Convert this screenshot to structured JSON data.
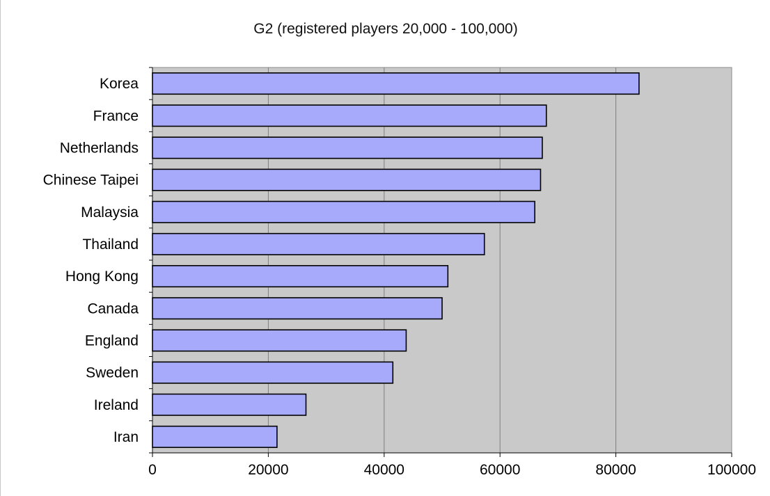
{
  "chart_data": {
    "type": "bar",
    "orientation": "horizontal",
    "title": "G2 (registered players 20,000 - 100,000)",
    "categories": [
      "Korea",
      "France",
      "Netherlands",
      "Chinese Taipei",
      "Malaysia",
      "Thailand",
      "Hong Kong",
      "Canada",
      "England",
      "Sweden",
      "Ireland",
      "Iran"
    ],
    "values": [
      84000,
      68000,
      67300,
      67000,
      66000,
      57300,
      51000,
      50000,
      43800,
      41500,
      26500,
      21500
    ],
    "xlim": [
      0,
      100000
    ],
    "xticks": [
      "0",
      "20000",
      "40000",
      "60000",
      "80000",
      "100000"
    ],
    "xlabel": "",
    "ylabel": "",
    "grid": "vertical gridlines",
    "legend": "none",
    "colors": {
      "bar_fill": "#a7a9fa",
      "bar_edge": "#000000",
      "plot_background": "#c9c9c9",
      "gridline": "#7f7f7f"
    }
  }
}
